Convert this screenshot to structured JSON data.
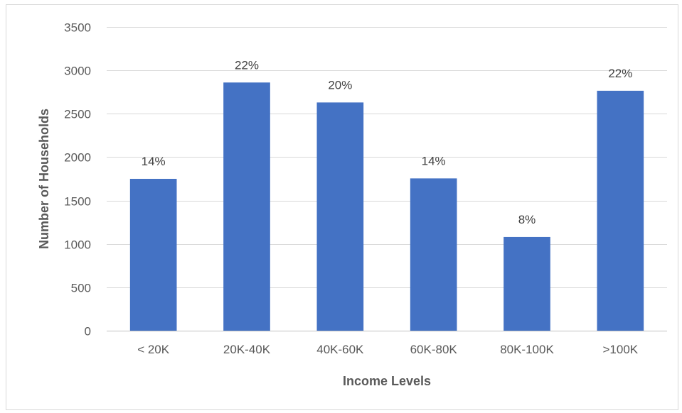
{
  "chart_data": {
    "type": "bar",
    "categories": [
      "< 20K",
      "20K-40K",
      "40K-60K",
      "60K-80K",
      "80K-100K",
      ">100K"
    ],
    "values": [
      1750,
      2860,
      2630,
      1755,
      1080,
      2765
    ],
    "data_labels": [
      "14%",
      "22%",
      "20%",
      "14%",
      "8%",
      "22%"
    ],
    "title": "",
    "xlabel": "Income Levels",
    "ylabel": "Number of Households",
    "ylim": [
      0,
      3500
    ],
    "yticks": [
      0,
      500,
      1000,
      1500,
      2000,
      2500,
      3000,
      3500
    ],
    "grid": true,
    "legend": "none",
    "bar_color": "#4472C4"
  }
}
